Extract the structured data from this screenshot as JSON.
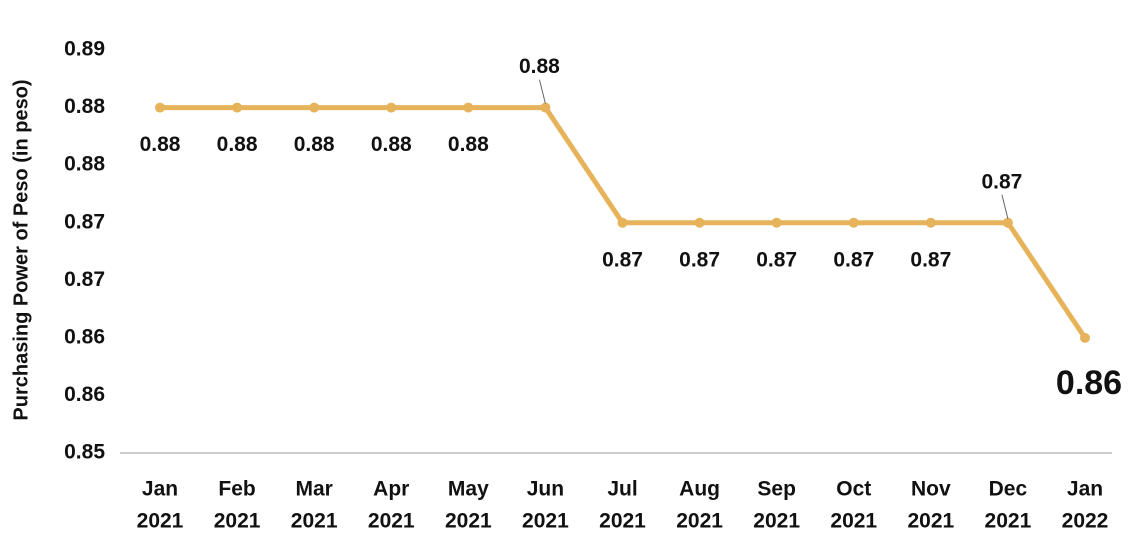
{
  "chart_data": {
    "type": "line",
    "y_label": "Purchasing Power of Peso (in peso)",
    "categories": [
      [
        "Jan",
        "2021"
      ],
      [
        "Feb",
        "2021"
      ],
      [
        "Mar",
        "2021"
      ],
      [
        "Apr",
        "2021"
      ],
      [
        "May",
        "2021"
      ],
      [
        "Jun",
        "2021"
      ],
      [
        "Jul",
        "2021"
      ],
      [
        "Aug",
        "2021"
      ],
      [
        "Sep",
        "2021"
      ],
      [
        "Oct",
        "2021"
      ],
      [
        "Nov",
        "2021"
      ],
      [
        "Dec",
        "2021"
      ],
      [
        "Jan",
        "2022"
      ]
    ],
    "series": [
      {
        "name": "Purchasing Power of Peso",
        "color": "#e6b35a",
        "values": [
          0.88,
          0.88,
          0.88,
          0.88,
          0.88,
          0.88,
          0.87,
          0.87,
          0.87,
          0.87,
          0.87,
          0.87,
          0.86
        ]
      }
    ],
    "ylim": [
      0.85,
      0.885
    ],
    "yticks": [
      0.85,
      {
        "value": 0.855,
        "label": "0.86"
      },
      0.86,
      {
        "value": 0.865,
        "label": "0.87"
      },
      0.87,
      {
        "value": 0.875,
        "label": "0.88"
      },
      0.88,
      {
        "value": 0.885,
        "label": "0.89"
      }
    ],
    "grid": false
  }
}
